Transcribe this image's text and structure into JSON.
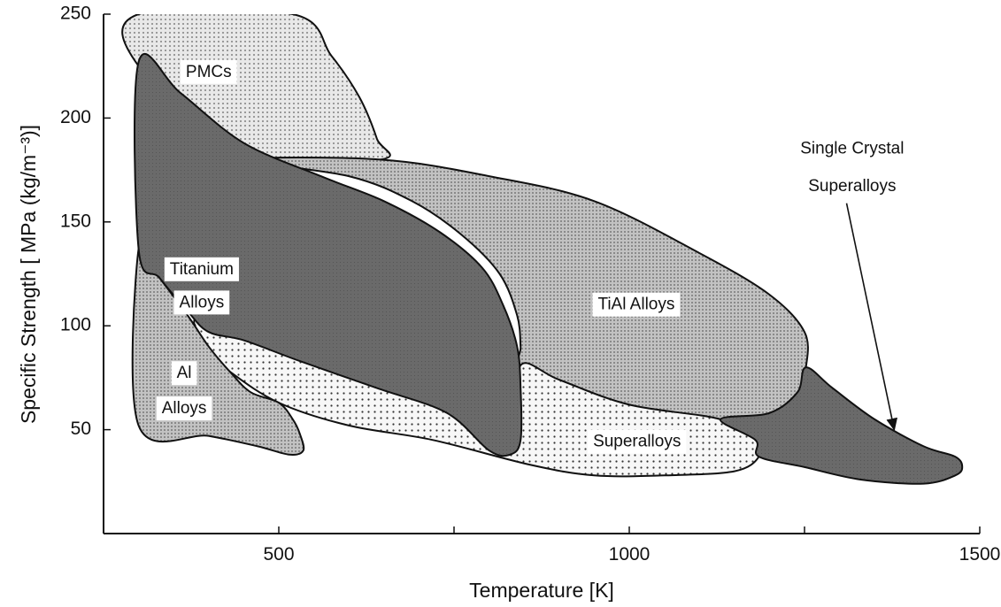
{
  "chart_data": {
    "type": "area",
    "xlabel": "Temperature [K]",
    "ylabel": "Specific Strength [ MPa (kg/m⁻³)]",
    "xlim": [
      250,
      1500
    ],
    "ylim": [
      0,
      250
    ],
    "x_ticks": [
      500,
      1000,
      1500
    ],
    "y_ticks": [
      50,
      100,
      150,
      200,
      250
    ],
    "grid": false,
    "regions": [
      {
        "name": "PMCs",
        "fill": "light-dots",
        "outline": [
          [
            300,
            250
          ],
          [
            520,
            250
          ],
          [
            575,
            230
          ],
          [
            615,
            210
          ],
          [
            640,
            190
          ],
          [
            645,
            180
          ],
          [
            450,
            180
          ],
          [
            300,
            225
          ]
        ]
      },
      {
        "name": "TiAl Alloys",
        "fill": "medium-gray-dots",
        "outline": [
          [
            450,
            180
          ],
          [
            645,
            180
          ],
          [
            800,
            172
          ],
          [
            950,
            160
          ],
          [
            1100,
            135
          ],
          [
            1200,
            115
          ],
          [
            1250,
            97
          ],
          [
            1252,
            80
          ],
          [
            1240,
            68
          ],
          [
            1200,
            58
          ],
          [
            1130,
            55
          ],
          [
            1000,
            62
          ],
          [
            900,
            74
          ],
          [
            845,
            81
          ],
          [
            845,
            90
          ],
          [
            840,
            105
          ],
          [
            815,
            125
          ],
          [
            760,
            144
          ],
          [
            690,
            160
          ],
          [
            600,
            172
          ]
        ]
      },
      {
        "name": "Superalloys",
        "fill": "sparse-dots",
        "outline": [
          [
            380,
            103
          ],
          [
            430,
            96
          ],
          [
            520,
            85
          ],
          [
            630,
            72
          ],
          [
            740,
            60
          ],
          [
            830,
            45
          ],
          [
            840,
            50
          ],
          [
            845,
            81
          ],
          [
            900,
            74
          ],
          [
            1000,
            62
          ],
          [
            1130,
            55
          ],
          [
            1180,
            45
          ],
          [
            1185,
            37
          ],
          [
            1150,
            30
          ],
          [
            1050,
            28
          ],
          [
            950,
            28
          ],
          [
            860,
            33
          ],
          [
            720,
            45
          ],
          [
            600,
            52
          ],
          [
            500,
            63
          ],
          [
            430,
            78
          ],
          [
            400,
            88
          ]
        ]
      },
      {
        "name": "Single Crystal Superalloys",
        "fill": "dark-gray",
        "outline": [
          [
            1130,
            55
          ],
          [
            1200,
            58
          ],
          [
            1240,
            68
          ],
          [
            1252,
            80
          ],
          [
            1290,
            70
          ],
          [
            1350,
            55
          ],
          [
            1420,
            42
          ],
          [
            1465,
            37
          ],
          [
            1475,
            32
          ],
          [
            1465,
            28
          ],
          [
            1420,
            24
          ],
          [
            1330,
            26
          ],
          [
            1250,
            32
          ],
          [
            1185,
            37
          ],
          [
            1180,
            45
          ]
        ]
      },
      {
        "name": "Al Alloys",
        "fill": "medium-gray-dots",
        "outline": [
          [
            300,
            137
          ],
          [
            330,
            123
          ],
          [
            370,
            105
          ],
          [
            400,
            90
          ],
          [
            430,
            78
          ],
          [
            460,
            68
          ],
          [
            500,
            63
          ],
          [
            520,
            55
          ],
          [
            530,
            48
          ],
          [
            535,
            40
          ],
          [
            515,
            38
          ],
          [
            470,
            42
          ],
          [
            400,
            47
          ],
          [
            300,
            52
          ]
        ]
      },
      {
        "name": "Titanium Alloys",
        "fill": "dark-gray",
        "outline": [
          [
            300,
            227
          ],
          [
            360,
            212
          ],
          [
            450,
            188
          ],
          [
            560,
            172
          ],
          [
            650,
            160
          ],
          [
            730,
            145
          ],
          [
            790,
            128
          ],
          [
            820,
            110
          ],
          [
            840,
            90
          ],
          [
            845,
            70
          ],
          [
            845,
            45
          ],
          [
            830,
            38
          ],
          [
            800,
            40
          ],
          [
            740,
            58
          ],
          [
            640,
            70
          ],
          [
            530,
            83
          ],
          [
            450,
            93
          ],
          [
            400,
            97
          ],
          [
            370,
            107
          ],
          [
            330,
            123
          ],
          [
            300,
            137
          ]
        ]
      }
    ],
    "labels": [
      {
        "text": "PMCs",
        "region": "PMCs",
        "x": 400,
        "y": 222
      },
      {
        "text": "Titanium",
        "region": "Titanium Alloys",
        "x": 390,
        "y": 127
      },
      {
        "text": "Alloys",
        "region": "Titanium Alloys",
        "x": 390,
        "y": 111
      },
      {
        "text": "TiAl Alloys",
        "region": "TiAl Alloys",
        "x": 1010,
        "y": 110
      },
      {
        "text": "Al",
        "region": "Al Alloys",
        "x": 365,
        "y": 77
      },
      {
        "text": "Alloys",
        "region": "Al Alloys",
        "x": 365,
        "y": 60
      },
      {
        "text": "Superalloys",
        "region": "Superalloys",
        "x": 1011,
        "y": 44
      },
      {
        "text": "Single Crystal",
        "region": "Single Crystal Superalloys",
        "x": 1318,
        "y": 185
      },
      {
        "text": "Superalloys",
        "region": "Single Crystal Superalloys",
        "x": 1318,
        "y": 167
      }
    ],
    "annotation_arrow": {
      "from": [
        1310,
        159
      ],
      "to": [
        1378,
        50
      ]
    }
  },
  "colors": {
    "background": "#ffffff",
    "axis": "#111111",
    "dark_fill": "#6a6a6a",
    "outline": "#111111",
    "label_box": "#ffffff"
  }
}
